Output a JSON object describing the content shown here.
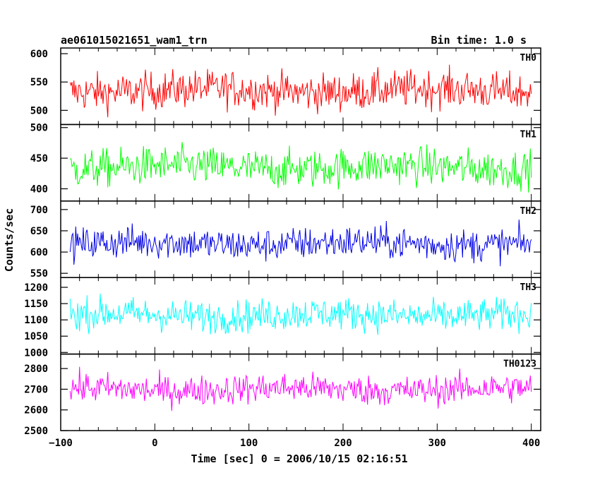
{
  "header": {
    "title": "ae061015021651_wam1_trn",
    "bin_time": "Bin time: 1.0 s"
  },
  "chart_data": {
    "type": "line",
    "xlabel": "Time [sec] 0 = 2006/10/15 02:16:51",
    "ylabel": "Counts/sec",
    "xlim": [
      -100,
      410
    ],
    "x_ticks": [
      "−100",
      "0",
      "100",
      "200",
      "300",
      "400"
    ],
    "x_tick_values": [
      -100,
      0,
      100,
      200,
      300,
      400
    ],
    "x_range": [
      -90,
      400
    ],
    "panels": [
      {
        "name": "TH0",
        "color": "#ff0000",
        "ylim": [
          475,
          610
        ],
        "yticks": [
          500,
          550,
          600
        ],
        "mean": 535,
        "amp": 30
      },
      {
        "name": "TH1",
        "color": "#00ff00",
        "ylim": [
          380,
          505
        ],
        "yticks": [
          400,
          450,
          500
        ],
        "mean": 435,
        "amp": 28
      },
      {
        "name": "TH2",
        "color": "#0000e6",
        "ylim": [
          540,
          720
        ],
        "yticks": [
          550,
          600,
          650,
          700
        ],
        "mean": 620,
        "amp": 35
      },
      {
        "name": "TH3",
        "color": "#00ffff",
        "ylim": [
          995,
          1230
        ],
        "yticks": [
          1000,
          1050,
          1100,
          1150,
          1200
        ],
        "mean": 1115,
        "amp": 45
      },
      {
        "name": "TH0123",
        "color": "#ff00ff",
        "ylim": [
          2500,
          2870
        ],
        "yticks": [
          2500,
          2600,
          2700,
          2800
        ],
        "mean": 2700,
        "amp": 65
      }
    ]
  }
}
